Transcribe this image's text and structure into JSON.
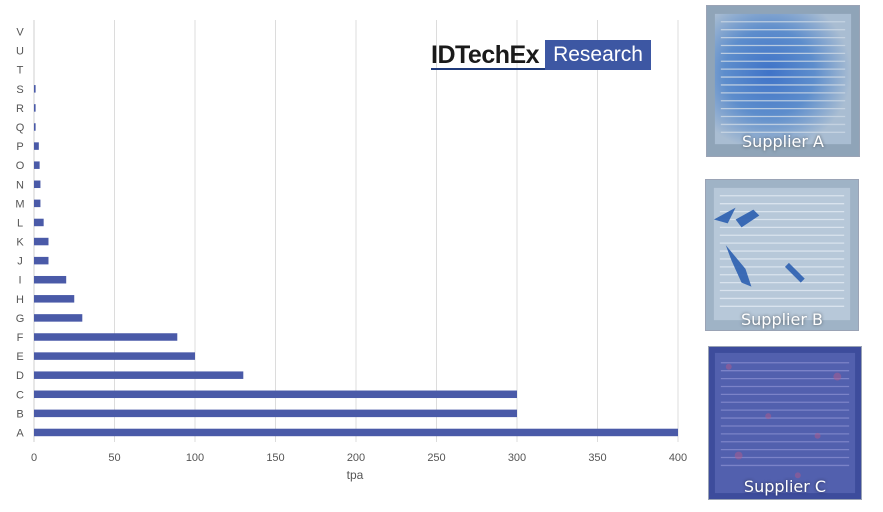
{
  "chart_data": {
    "type": "bar",
    "orientation": "horizontal",
    "categories": [
      "A",
      "B",
      "C",
      "D",
      "E",
      "F",
      "G",
      "H",
      "I",
      "J",
      "K",
      "L",
      "M",
      "N",
      "O",
      "P",
      "Q",
      "R",
      "S",
      "T",
      "U",
      "V"
    ],
    "values": [
      400,
      300,
      300,
      130,
      100,
      89,
      30,
      25,
      20,
      9,
      9,
      6,
      4,
      4,
      3.5,
      3,
      1,
      1,
      1,
      0,
      0,
      0
    ],
    "xlabel": "tpa",
    "ylabel": "",
    "xlim": [
      0,
      400
    ],
    "xticks": [
      0,
      50,
      100,
      150,
      200,
      250,
      300,
      350,
      400
    ],
    "grid": "vertical",
    "bar_color": "#4a5aa8"
  },
  "logo": {
    "brand": "IDTechEx",
    "tag": "Research"
  },
  "photos": [
    {
      "label": "Supplier A"
    },
    {
      "label": "Supplier B"
    },
    {
      "label": "Supplier C"
    }
  ]
}
